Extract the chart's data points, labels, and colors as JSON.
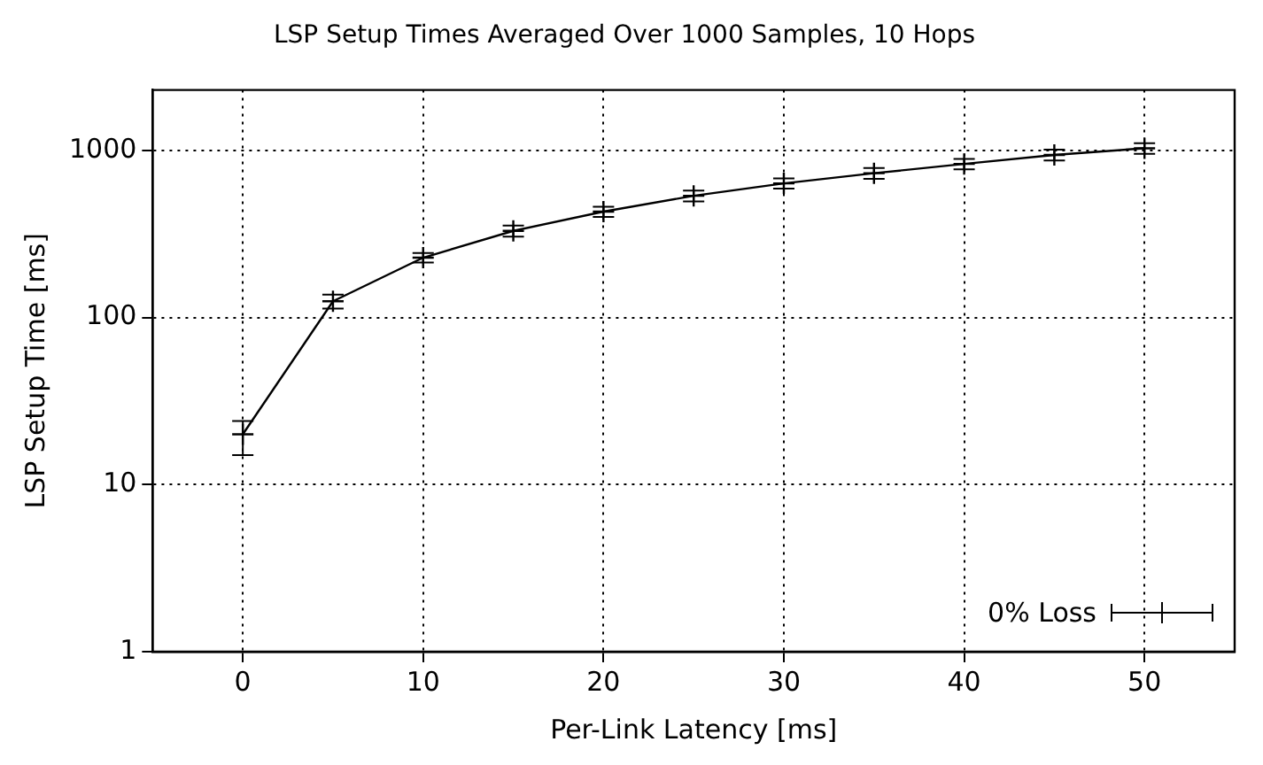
{
  "chart_data": {
    "type": "line",
    "title": "LSP Setup Times Averaged Over 1000 Samples, 10 Hops",
    "xlabel": "Per-Link Latency [ms]",
    "ylabel": "LSP Setup Time [ms]",
    "x": [
      0,
      5,
      10,
      15,
      20,
      25,
      30,
      35,
      40,
      45,
      50
    ],
    "series": [
      {
        "name": "0% Loss",
        "color": "#000000",
        "values": [
          20,
          125,
          228,
          330,
          430,
          535,
          635,
          730,
          830,
          940,
          1030
        ],
        "errors": [
          [
            15,
            24
          ],
          12,
          15,
          25,
          30,
          40,
          45,
          55,
          60,
          70,
          75
        ]
      }
    ],
    "xlim": [
      -5,
      55
    ],
    "xticks": [
      0,
      10,
      20,
      30,
      40,
      50
    ],
    "ylim": [
      1,
      2300
    ],
    "yticks": [
      1,
      10,
      100,
      1000
    ],
    "log": "y",
    "grid": true,
    "legend": "bottom right",
    "marker": "cross",
    "line_style": "solid"
  }
}
